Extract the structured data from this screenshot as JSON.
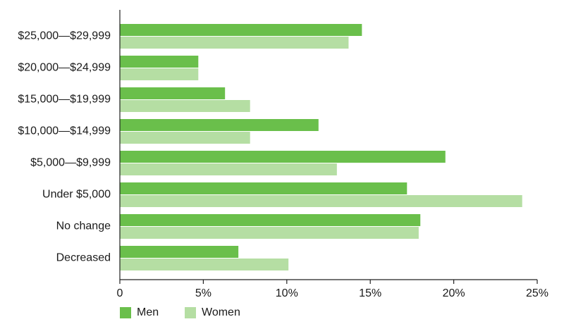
{
  "chart_data": {
    "type": "bar",
    "orientation": "horizontal",
    "title": "",
    "xlabel": "",
    "ylabel": "",
    "categories": [
      "$25,000—$29,999",
      "$20,000—$24,999",
      "$15,000—$19,999",
      "$10,000—$14,999",
      "$5,000—$9,999",
      "Under $5,000",
      "No change",
      "Decreased"
    ],
    "series": [
      {
        "name": "Men",
        "color": "#6abf4b",
        "values": [
          14.5,
          4.7,
          6.3,
          11.9,
          19.5,
          17.2,
          18.0,
          7.1
        ]
      },
      {
        "name": "Women",
        "color": "#b5dea3",
        "values": [
          13.7,
          4.7,
          7.8,
          7.8,
          13.0,
          24.1,
          17.9,
          10.1
        ]
      }
    ],
    "xlim": [
      0,
      25
    ],
    "x_ticks": [
      {
        "value": 0,
        "label": "0"
      },
      {
        "value": 5,
        "label": "5%"
      },
      {
        "value": 10,
        "label": "10%"
      },
      {
        "value": 15,
        "label": "15%"
      },
      {
        "value": 20,
        "label": "20%"
      },
      {
        "value": 25,
        "label": "25%"
      }
    ],
    "grid": false,
    "legend": {
      "placement": "bottom-left",
      "entries": [
        "Men",
        "Women"
      ]
    }
  }
}
